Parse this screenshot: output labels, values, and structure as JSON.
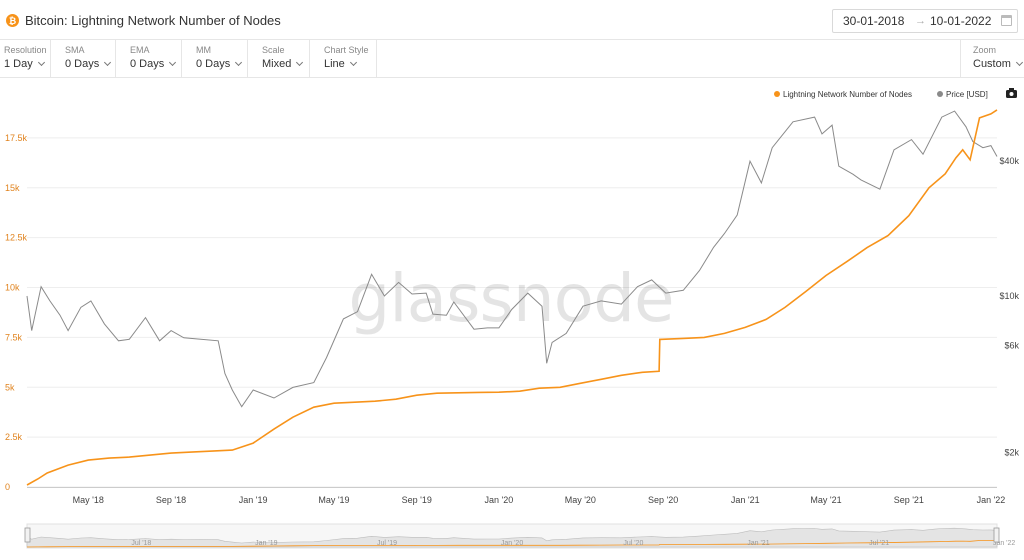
{
  "header": {
    "title": "Bitcoin: Lightning Network Number of Nodes",
    "icon": "bitcoin-icon",
    "date_start": "30-01-2018",
    "date_arrow": "→",
    "date_end": "10-01-2022"
  },
  "controls": {
    "resolution": {
      "label": "Resolution",
      "value": "1 Day"
    },
    "sma": {
      "label": "SMA",
      "value": "0 Days"
    },
    "ema": {
      "label": "EMA",
      "value": "0 Days"
    },
    "mm": {
      "label": "MM",
      "value": "0 Days"
    },
    "scale": {
      "label": "Scale",
      "value": "Mixed"
    },
    "chart_style": {
      "label": "Chart Style",
      "value": "Line"
    },
    "zoom": {
      "label": "Zoom",
      "value": "Custom"
    }
  },
  "watermark": "glassnode",
  "colors": {
    "nodes": "#f7931a",
    "price": "#8a8a8a"
  },
  "chart_data": {
    "type": "line",
    "title": "Bitcoin: Lightning Network Number of Nodes",
    "x_range": [
      "2018-01-30",
      "2022-01-10"
    ],
    "x_ticks": [
      "May '18",
      "Sep '18",
      "Jan '19",
      "May '19",
      "Sep '19",
      "Jan '20",
      "May '20",
      "Sep '20",
      "Jan '21",
      "May '21",
      "Sep '21",
      "Jan '22"
    ],
    "x_tick_dates": [
      "2018-05-01",
      "2018-09-01",
      "2019-01-01",
      "2019-05-01",
      "2019-09-01",
      "2020-01-01",
      "2020-05-01",
      "2020-09-01",
      "2021-01-01",
      "2021-05-01",
      "2021-09-01",
      "2022-01-01"
    ],
    "navigator_ticks": [
      "Jul '18",
      "Jan '19",
      "Jul '19",
      "Jan '20",
      "Jul '20",
      "Jan '21",
      "Jul '21",
      "Jan '22"
    ],
    "navigator_tick_dates": [
      "2018-07-01",
      "2019-01-01",
      "2019-07-01",
      "2020-01-01",
      "2020-07-01",
      "2021-01-01",
      "2021-07-01",
      "2022-01-01"
    ],
    "y_left": {
      "min": 0,
      "max": 20000,
      "ticks": [
        0,
        2500,
        5000,
        7500,
        10000,
        12500,
        15000,
        17500
      ],
      "tick_labels": [
        "0",
        "2.5k",
        "5k",
        "7.5k",
        "10k",
        "12.5k",
        "15k",
        "17.5k"
      ],
      "scale": "linear"
    },
    "y_right": {
      "scale": "log",
      "min": 1400,
      "max": 85000,
      "ticks": [
        2000,
        6000,
        10000,
        40000
      ],
      "tick_labels": [
        "$2k",
        "$6k",
        "$10k",
        "$40k"
      ]
    },
    "legend": {
      "placement": "top-right",
      "camera_icon": "camera-icon"
    },
    "grid": {
      "horizontal": true,
      "vertical": false
    },
    "series": [
      {
        "name": "Lightning Network Number of Nodes",
        "axis": "left",
        "x": [
          "2018-01-30",
          "2018-02-15",
          "2018-03-01",
          "2018-04-01",
          "2018-05-01",
          "2018-06-01",
          "2018-07-01",
          "2018-08-01",
          "2018-09-01",
          "2018-10-01",
          "2018-11-01",
          "2018-12-01",
          "2019-01-01",
          "2019-02-01",
          "2019-03-01",
          "2019-04-01",
          "2019-05-01",
          "2019-06-01",
          "2019-07-01",
          "2019-08-01",
          "2019-09-01",
          "2019-10-01",
          "2019-11-01",
          "2019-12-01",
          "2020-01-01",
          "2020-02-01",
          "2020-03-01",
          "2020-04-01",
          "2020-05-01",
          "2020-06-01",
          "2020-07-01",
          "2020-08-01",
          "2020-08-26",
          "2020-08-27",
          "2020-10-01",
          "2020-11-01",
          "2020-12-01",
          "2021-01-01",
          "2021-02-01",
          "2021-03-01",
          "2021-04-01",
          "2021-05-01",
          "2021-06-01",
          "2021-07-01",
          "2021-08-01",
          "2021-09-01",
          "2021-10-01",
          "2021-10-25",
          "2021-11-10",
          "2021-11-20",
          "2021-12-01",
          "2021-12-15",
          "2022-01-01",
          "2022-01-10"
        ],
        "values": [
          100,
          400,
          700,
          1100,
          1350,
          1450,
          1500,
          1600,
          1700,
          1750,
          1800,
          1850,
          2200,
          2900,
          3500,
          4000,
          4200,
          4250,
          4300,
          4400,
          4600,
          4700,
          4720,
          4740,
          4750,
          4800,
          4950,
          5000,
          5200,
          5400,
          5600,
          5750,
          5800,
          7400,
          7450,
          7500,
          7700,
          8000,
          8400,
          9000,
          9800,
          10600,
          11300,
          12000,
          12600,
          13600,
          15000,
          15700,
          16500,
          16900,
          16400,
          18500,
          18700,
          18900
        ]
      },
      {
        "name": "Price [USD]",
        "axis": "right",
        "x": [
          "2018-01-30",
          "2018-02-06",
          "2018-02-20",
          "2018-03-05",
          "2018-03-20",
          "2018-04-01",
          "2018-04-20",
          "2018-05-05",
          "2018-05-25",
          "2018-06-15",
          "2018-07-01",
          "2018-07-25",
          "2018-08-15",
          "2018-09-01",
          "2018-09-20",
          "2018-10-15",
          "2018-11-10",
          "2018-11-20",
          "2018-12-01",
          "2018-12-15",
          "2019-01-01",
          "2019-02-01",
          "2019-03-01",
          "2019-04-01",
          "2019-04-20",
          "2019-05-15",
          "2019-06-05",
          "2019-06-26",
          "2019-07-15",
          "2019-08-05",
          "2019-08-25",
          "2019-09-15",
          "2019-09-25",
          "2019-10-15",
          "2019-10-26",
          "2019-11-25",
          "2019-12-15",
          "2020-01-01",
          "2020-01-20",
          "2020-02-13",
          "2020-03-05",
          "2020-03-12",
          "2020-03-20",
          "2020-04-10",
          "2020-05-05",
          "2020-06-01",
          "2020-07-01",
          "2020-07-25",
          "2020-08-15",
          "2020-09-05",
          "2020-10-01",
          "2020-10-25",
          "2020-11-15",
          "2020-12-01",
          "2020-12-20",
          "2021-01-08",
          "2021-01-25",
          "2021-02-10",
          "2021-03-13",
          "2021-04-14",
          "2021-04-25",
          "2021-05-10",
          "2021-05-20",
          "2021-06-10",
          "2021-06-22",
          "2021-07-20",
          "2021-08-10",
          "2021-09-05",
          "2021-09-22",
          "2021-10-10",
          "2021-10-20",
          "2021-11-08",
          "2021-11-25",
          "2021-12-05",
          "2021-12-20",
          "2022-01-01",
          "2022-01-10"
        ],
        "values": [
          10000,
          7000,
          11000,
          9500,
          8200,
          7000,
          8900,
          9500,
          7500,
          6300,
          6400,
          8000,
          6300,
          7000,
          6500,
          6400,
          6300,
          4500,
          3800,
          3200,
          3800,
          3500,
          3900,
          4100,
          5300,
          7900,
          8500,
          12500,
          10000,
          11500,
          10200,
          10300,
          8300,
          8200,
          9400,
          7100,
          7200,
          7200,
          8700,
          10300,
          9000,
          5000,
          6200,
          6800,
          9000,
          9500,
          9200,
          11000,
          11800,
          10300,
          10600,
          13000,
          16500,
          19000,
          23000,
          40000,
          32000,
          46000,
          60000,
          63000,
          53000,
          58000,
          38000,
          35000,
          33000,
          30000,
          45000,
          50000,
          43000,
          55000,
          63000,
          67000,
          57000,
          49000,
          46000,
          47000,
          42000
        ]
      }
    ]
  }
}
